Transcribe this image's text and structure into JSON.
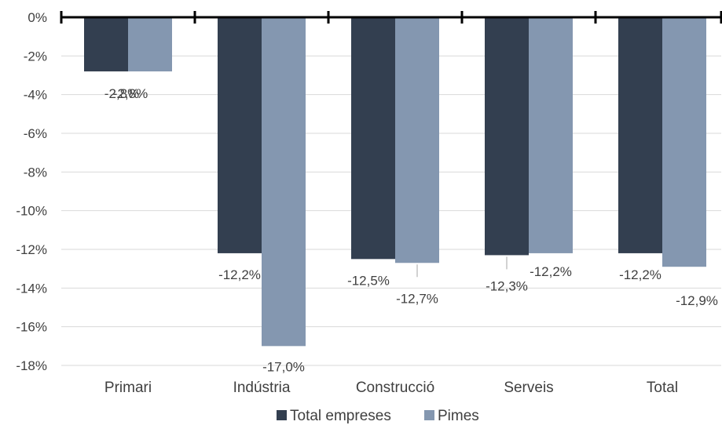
{
  "chart_data": {
    "type": "bar",
    "title": "",
    "xlabel": "",
    "ylabel": "",
    "categories": [
      "Primari",
      "Indústria",
      "Construcció",
      "Serveis",
      "Total"
    ],
    "series": [
      {
        "name": "Total empreses",
        "color": "#333f50",
        "values": [
          -2.8,
          -12.2,
          -12.5,
          -12.3,
          -12.2
        ],
        "labels": [
          "-2,8%",
          "-12,2%",
          "-12,5%",
          "-12,3%",
          "-12,2%"
        ]
      },
      {
        "name": "Pimes",
        "color": "#8497b0",
        "values": [
          -2.8,
          -17.0,
          -12.7,
          -12.2,
          -12.9
        ],
        "labels": [
          "-2,8%",
          "-17,0%",
          "-12,7%",
          "-12,2%",
          "-12,9%"
        ]
      }
    ],
    "ylim": [
      -18,
      0
    ],
    "yticks": [
      0,
      -2,
      -4,
      -6,
      -8,
      -10,
      -12,
      -14,
      -16,
      -18
    ],
    "ytick_labels": [
      "0%",
      "-2%",
      "-4%",
      "-6%",
      "-8%",
      "-10%",
      "-12%",
      "-14%",
      "-16%",
      "-18%"
    ],
    "grid": true,
    "legend": "bottom-center"
  }
}
